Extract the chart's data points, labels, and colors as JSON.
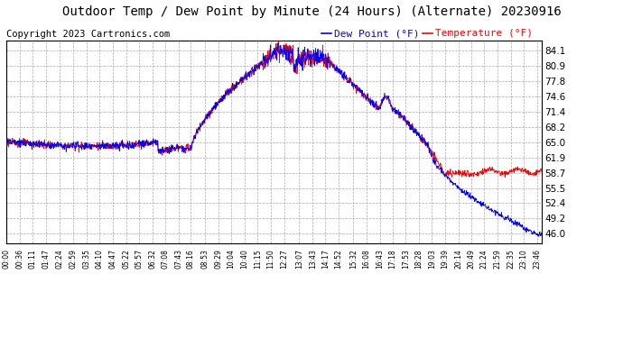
{
  "title": "Outdoor Temp / Dew Point by Minute (24 Hours) (Alternate) 20230916",
  "copyright": "Copyright 2023 Cartronics.com",
  "legend_dew": "Dew Point (°F)",
  "legend_temp": "Temperature (°F)",
  "y_ticks": [
    46.0,
    49.2,
    52.4,
    55.5,
    58.7,
    61.9,
    65.0,
    68.2,
    71.4,
    74.6,
    77.8,
    80.9,
    84.1
  ],
  "ylim": [
    44.0,
    86.2
  ],
  "x_labels": [
    "00:00",
    "00:36",
    "01:11",
    "01:47",
    "02:24",
    "02:59",
    "03:35",
    "04:10",
    "04:47",
    "05:22",
    "05:57",
    "06:32",
    "07:08",
    "07:43",
    "08:16",
    "08:53",
    "09:29",
    "10:04",
    "10:40",
    "11:15",
    "11:50",
    "12:27",
    "13:07",
    "13:43",
    "14:17",
    "14:52",
    "15:32",
    "16:08",
    "16:43",
    "17:18",
    "17:53",
    "18:28",
    "19:03",
    "19:39",
    "20:14",
    "20:49",
    "21:24",
    "21:59",
    "22:35",
    "23:10",
    "23:46"
  ],
  "temp_color": "red",
  "dew_color": "blue",
  "grid_color": "#aaaaaa",
  "bg_color": "white",
  "title_color": "black",
  "title_fontsize": 10,
  "copyright_color": "black",
  "copyright_fontsize": 7.5,
  "legend_dew_color": "blue",
  "legend_temp_color": "red",
  "legend_fontsize": 8
}
